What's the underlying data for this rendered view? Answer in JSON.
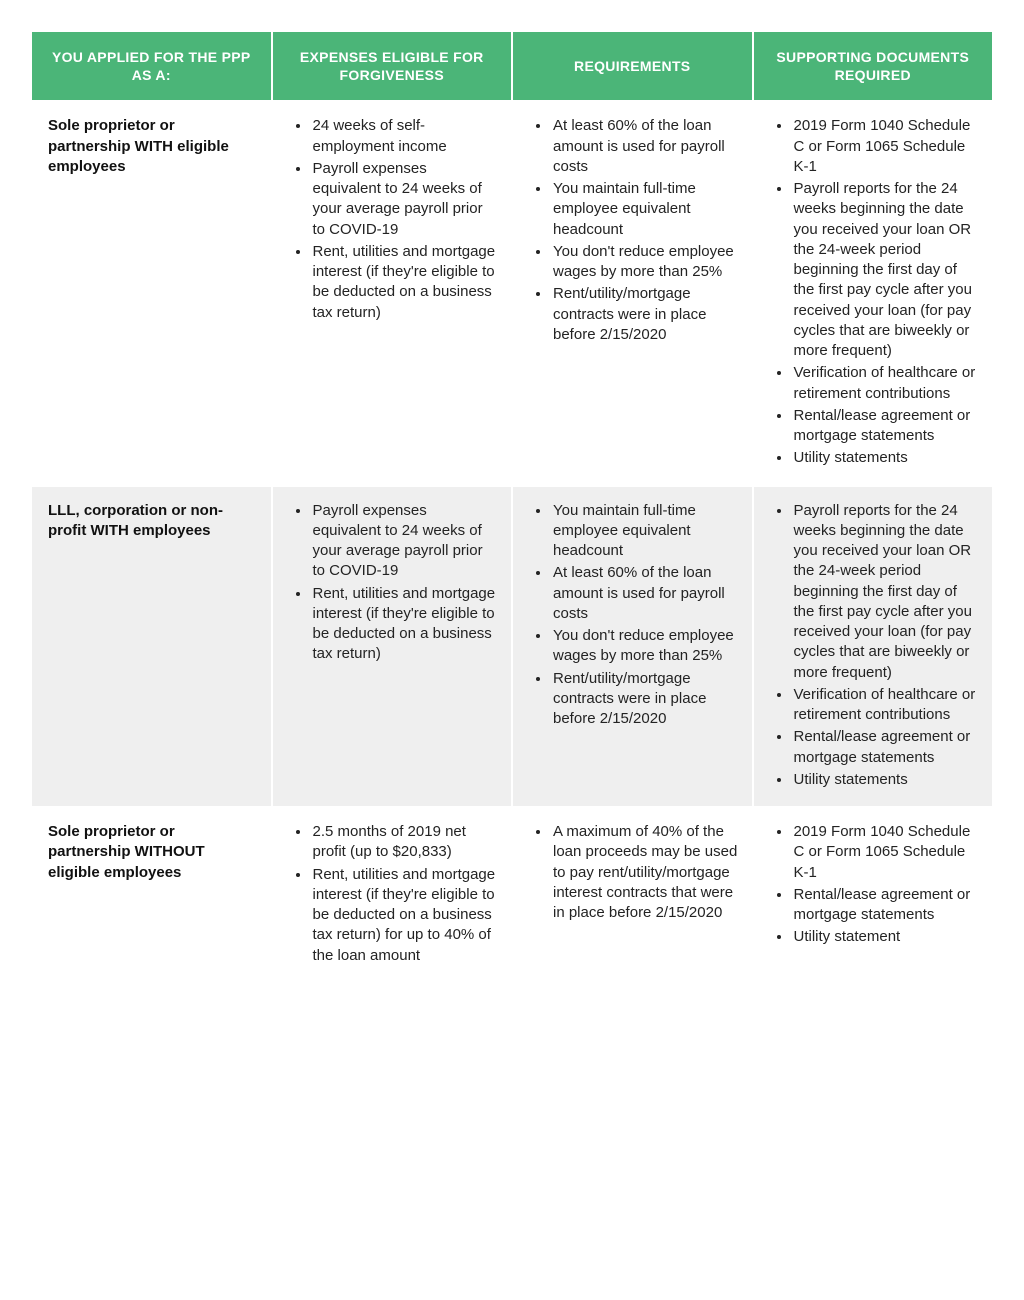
{
  "table": {
    "header_bg": "#4bb578",
    "header_fg": "#ffffff",
    "row_bg_odd": "#ffffff",
    "row_bg_even": "#efefef",
    "headers": [
      "YOU APPLIED FOR THE PPP AS A:",
      "EXPENSES ELIGIBLE FOR FORGIVENESS",
      "REQUIREMENTS",
      "SUPPORTING DOCUMENTS REQUIRED"
    ],
    "rows": [
      {
        "applied_as": "Sole proprietor or partnership WITH eligible employees",
        "expenses": [
          "24 weeks of self-employment income",
          "Payroll expenses equivalent to 24 weeks of your average payroll prior to COVID-19",
          "Rent, utilities and mortgage interest (if they're eligible to be deducted on a business tax return)"
        ],
        "requirements": [
          "At least 60% of the loan amount is used for payroll costs",
          "You maintain full-time employee equivalent headcount",
          "You don't reduce employee wages by more than 25%",
          "Rent/utility/mortgage contracts were in place before 2/15/2020"
        ],
        "documents": [
          "2019 Form 1040 Schedule C or Form 1065 Schedule K-1",
          "Payroll reports for the 24 weeks beginning the date you received your loan OR the 24-week period beginning the first day of the first pay cycle after you received your loan (for pay cycles that are biweekly or more frequent)",
          "Verification of healthcare or retirement contributions",
          "Rental/lease agreement or mortgage statements",
          "Utility statements"
        ]
      },
      {
        "applied_as": "LLL, corporation or non-profit WITH employees",
        "expenses": [
          "Payroll expenses equivalent to 24 weeks of your average payroll prior to COVID-19",
          "Rent, utilities and mortgage interest (if they're eligible to be deducted on a business tax return)"
        ],
        "requirements": [
          "You maintain full-time employee equivalent headcount",
          "At least 60% of the loan amount is used for payroll costs",
          "You don't reduce employee wages by more than 25%",
          "Rent/utility/mortgage contracts were in place before 2/15/2020"
        ],
        "documents": [
          "Payroll reports for the 24 weeks beginning the date you received your loan OR the 24-week period beginning the first day of the first pay cycle after you received your loan (for pay cycles that are biweekly or more frequent)",
          "Verification of healthcare or retirement contributions",
          "Rental/lease agreement or mortgage statements",
          "Utility statements"
        ]
      },
      {
        "applied_as": "Sole proprietor or partnership WITHOUT eligible employees",
        "expenses": [
          "2.5 months of 2019 net profit (up to $20,833)",
          "Rent, utilities and mortgage interest (if they're eligible to be deducted on a business tax return) for up to 40% of the loan amount"
        ],
        "requirements": [
          "A maximum of 40% of the loan proceeds may be used to pay rent/utility/mortgage interest contracts that were in place before 2/15/2020"
        ],
        "documents": [
          "2019 Form 1040 Schedule C or Form 1065 Schedule K-1",
          "Rental/lease agreement or mortgage statements",
          "Utility statement"
        ]
      }
    ]
  }
}
